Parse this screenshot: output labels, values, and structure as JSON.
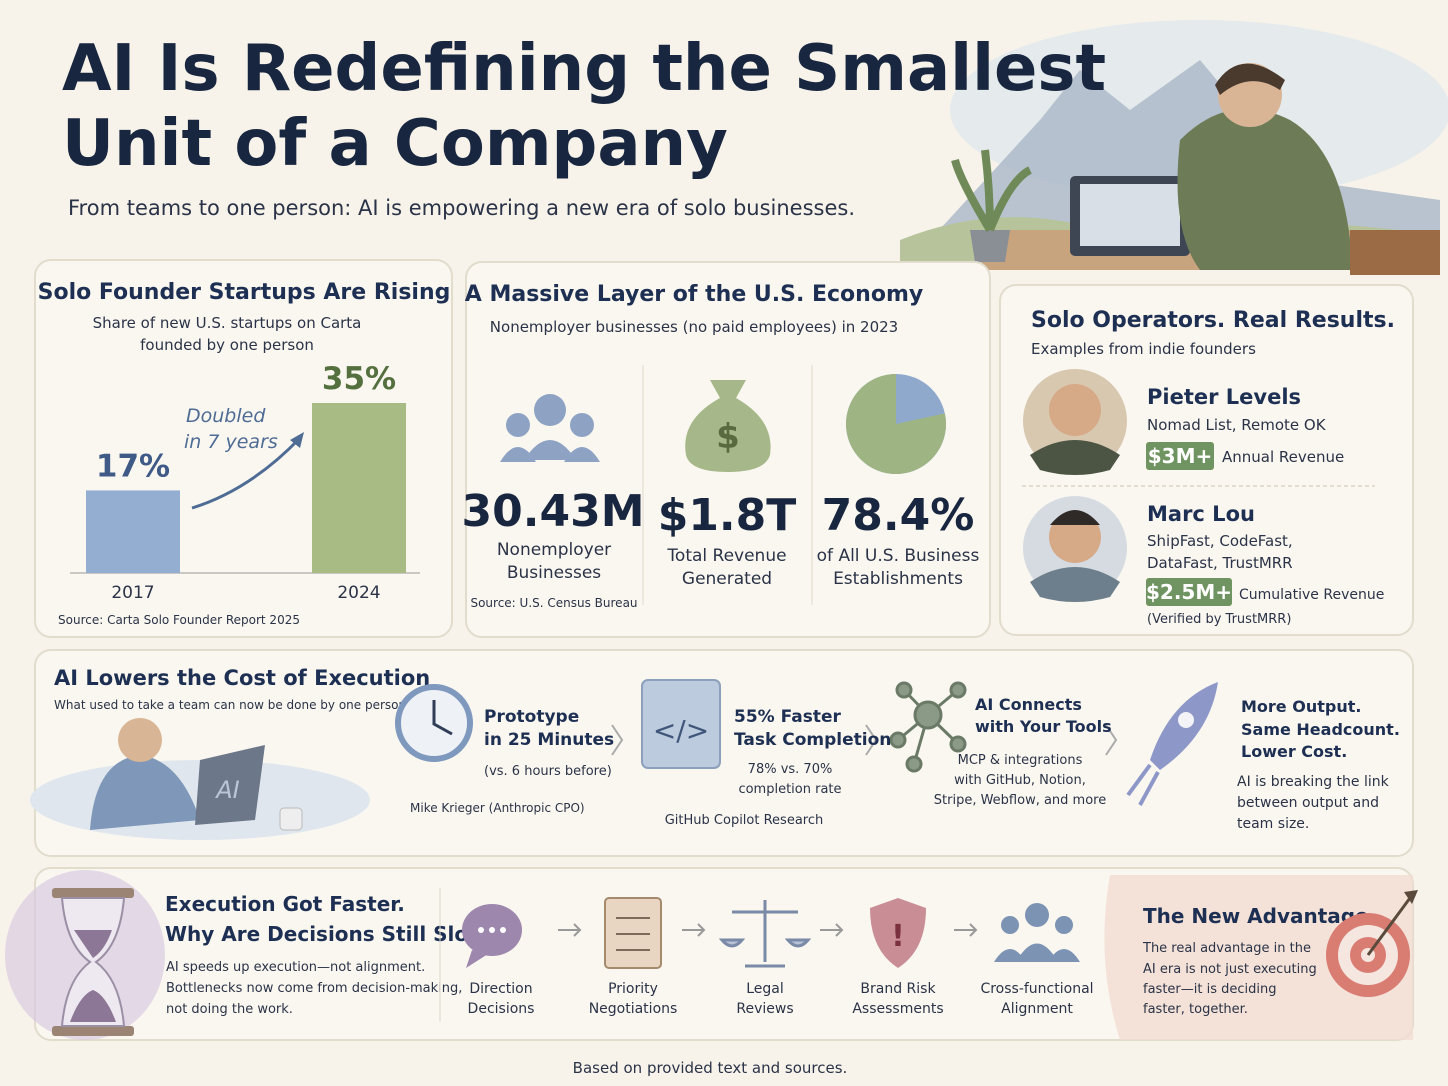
{
  "header": {
    "title_lines": [
      "AI Is Redefining the Smallest",
      "Unit of a Company"
    ],
    "subtitle": "From teams to one person: AI is empowering a new era of solo businesses."
  },
  "chart_data": [
    {
      "type": "bar",
      "title": "Solo Founder Startups Are Rising",
      "subtitle_lines": [
        "Share of new U.S. startups on Carta",
        "founded by one person"
      ],
      "categories": [
        "2017",
        "2024"
      ],
      "values": [
        17,
        35
      ],
      "value_labels": [
        "17%",
        "35%"
      ],
      "colors": [
        "#93aed0",
        "#a8bb84"
      ],
      "annotation_lines": [
        "Doubled",
        "in 7 years"
      ],
      "source": "Source: Carta Solo Founder Report 2025"
    },
    {
      "type": "pie",
      "values": [
        78.4
      ],
      "value_labels": [
        "78.4%"
      ],
      "color": "#9fb483"
    }
  ],
  "economy": {
    "title": "A Massive Layer of the U.S. Economy",
    "subtitle": "Nonemployer businesses (no paid employees) in 2023",
    "stats": [
      {
        "value": "30.43M",
        "label_lines": [
          "Nonemployer",
          "Businesses"
        ]
      },
      {
        "value": "$1.8T",
        "label_lines": [
          "Total Revenue",
          "Generated"
        ]
      },
      {
        "label_lines": [
          "of All U.S. Business",
          "Establishments"
        ]
      }
    ],
    "source": "Source: U.S. Census Bureau"
  },
  "founders": {
    "title": "Solo Operators. Real Results.",
    "subtitle": "Examples from indie founders",
    "people": [
      {
        "name": "Pieter Levels",
        "company_lines": [
          "Nomad List, Remote OK"
        ],
        "metric": "$3M+",
        "metric_label": "Annual Revenue"
      },
      {
        "name": "Marc Lou",
        "company_lines": [
          "ShipFast, CodeFast,",
          "DataFast, TrustMRR"
        ],
        "metric": "$2.5M+",
        "metric_label": "Cumulative Revenue",
        "note": "(Verified by TrustMRR)"
      }
    ]
  },
  "execution": {
    "title": "AI Lowers the Cost of Execution",
    "subtitle": "What used to take a team can now be done by one person.",
    "items": [
      {
        "title_lines": [
          "Prototype",
          "in 25 Minutes"
        ],
        "detail_lines": [
          "(vs. 6 hours before)"
        ],
        "source": "Mike Krieger (Anthropic CPO)"
      },
      {
        "title_lines": [
          "55% Faster",
          "Task Completion"
        ],
        "detail_lines": [
          "78% vs. 70%",
          "completion rate"
        ],
        "source": "GitHub Copilot Research"
      },
      {
        "title_lines": [
          "AI Connects",
          "with Your Tools"
        ],
        "detail_lines": [
          "MCP & integrations",
          "with GitHub, Notion,",
          "Stripe, Webflow, and more"
        ]
      },
      {
        "title_lines": [
          "More Output.",
          "Same Headcount.",
          "Lower Cost."
        ],
        "detail_lines": [
          "AI is breaking the link",
          "between output and",
          "team size."
        ]
      }
    ]
  },
  "decisions": {
    "title_lines": [
      "Execution Got Faster.",
      "Why Are Decisions Still Slow?"
    ],
    "body_lines": [
      "AI speeds up execution—not alignment.",
      "Bottlenecks now come from decision-making,",
      "not doing the work."
    ],
    "steps": [
      {
        "lines": [
          "Direction",
          "Decisions"
        ]
      },
      {
        "lines": [
          "Priority",
          "Negotiations"
        ]
      },
      {
        "lines": [
          "Legal",
          "Reviews"
        ]
      },
      {
        "lines": [
          "Brand Risk",
          "Assessments"
        ]
      },
      {
        "lines": [
          "Cross-functional",
          "Alignment"
        ]
      }
    ],
    "advantage": {
      "title": "The New Advantage",
      "body_lines": [
        "The real advantage in the",
        "AI era is not just executing",
        "faster—it is deciding",
        "faster, together."
      ]
    }
  },
  "footer": "Based on provided text and sources."
}
